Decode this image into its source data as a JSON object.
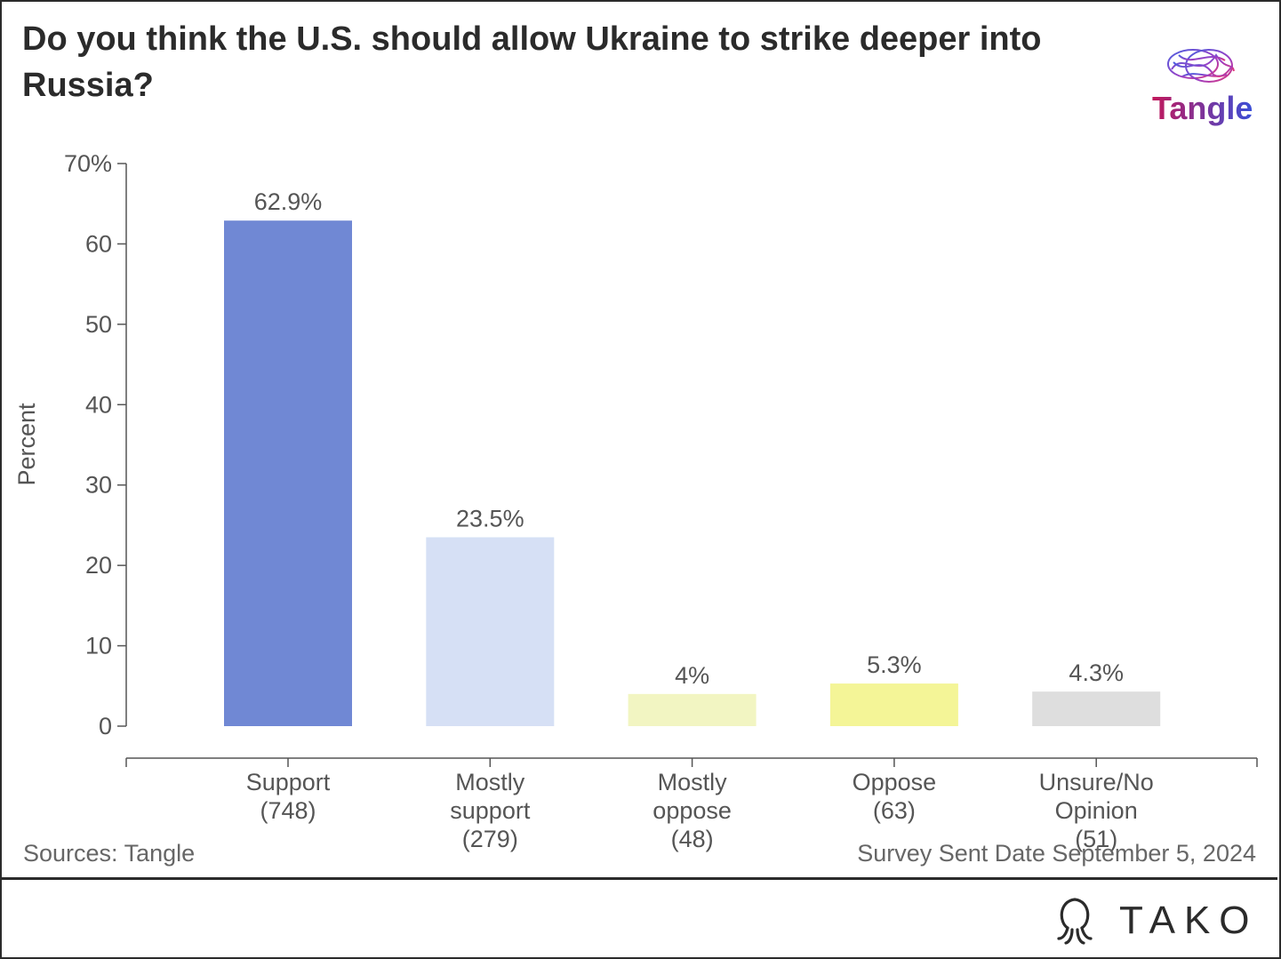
{
  "title": "Do you think the U.S. should allow Ukraine to strike deeper into Russia?",
  "logo_text": "Tangle",
  "footer": {
    "sources": "Sources: Tangle",
    "survey_date": "Survey Sent Date September 5, 2024",
    "brand": "TAKO"
  },
  "colors": {
    "support": "#7088d4",
    "mostly_support": "#d6e0f5",
    "mostly_oppose": "#f2f5c2",
    "oppose": "#f4f597",
    "unsure": "#dedede",
    "axis": "#555555",
    "label": "#555555"
  },
  "chart_data": {
    "type": "bar",
    "title": "Do you think the U.S. should allow Ukraine to strike deeper into Russia?",
    "ylabel": "Percent",
    "xlabel": "",
    "ylim": [
      0,
      70
    ],
    "yticks": [
      0,
      10,
      20,
      30,
      40,
      50,
      60,
      70
    ],
    "ytick_labels": [
      "0",
      "10",
      "20",
      "30",
      "40",
      "50",
      "60",
      "70%"
    ],
    "categories": [
      [
        "Support",
        "(748)"
      ],
      [
        "Mostly",
        "support",
        "(279)"
      ],
      [
        "Mostly",
        "oppose",
        "(48)"
      ],
      [
        "Oppose",
        "(63)"
      ],
      [
        "Unsure/No",
        "Opinion",
        "(51)"
      ]
    ],
    "values": [
      62.9,
      23.5,
      4,
      5.3,
      4.3
    ],
    "value_labels": [
      "62.9%",
      "23.5%",
      "4%",
      "5.3%",
      "4.3%"
    ],
    "bar_colors": [
      "#7088d4",
      "#d6e0f5",
      "#f2f5c2",
      "#f4f597",
      "#dedede"
    ],
    "grid": false,
    "legend": "none"
  }
}
